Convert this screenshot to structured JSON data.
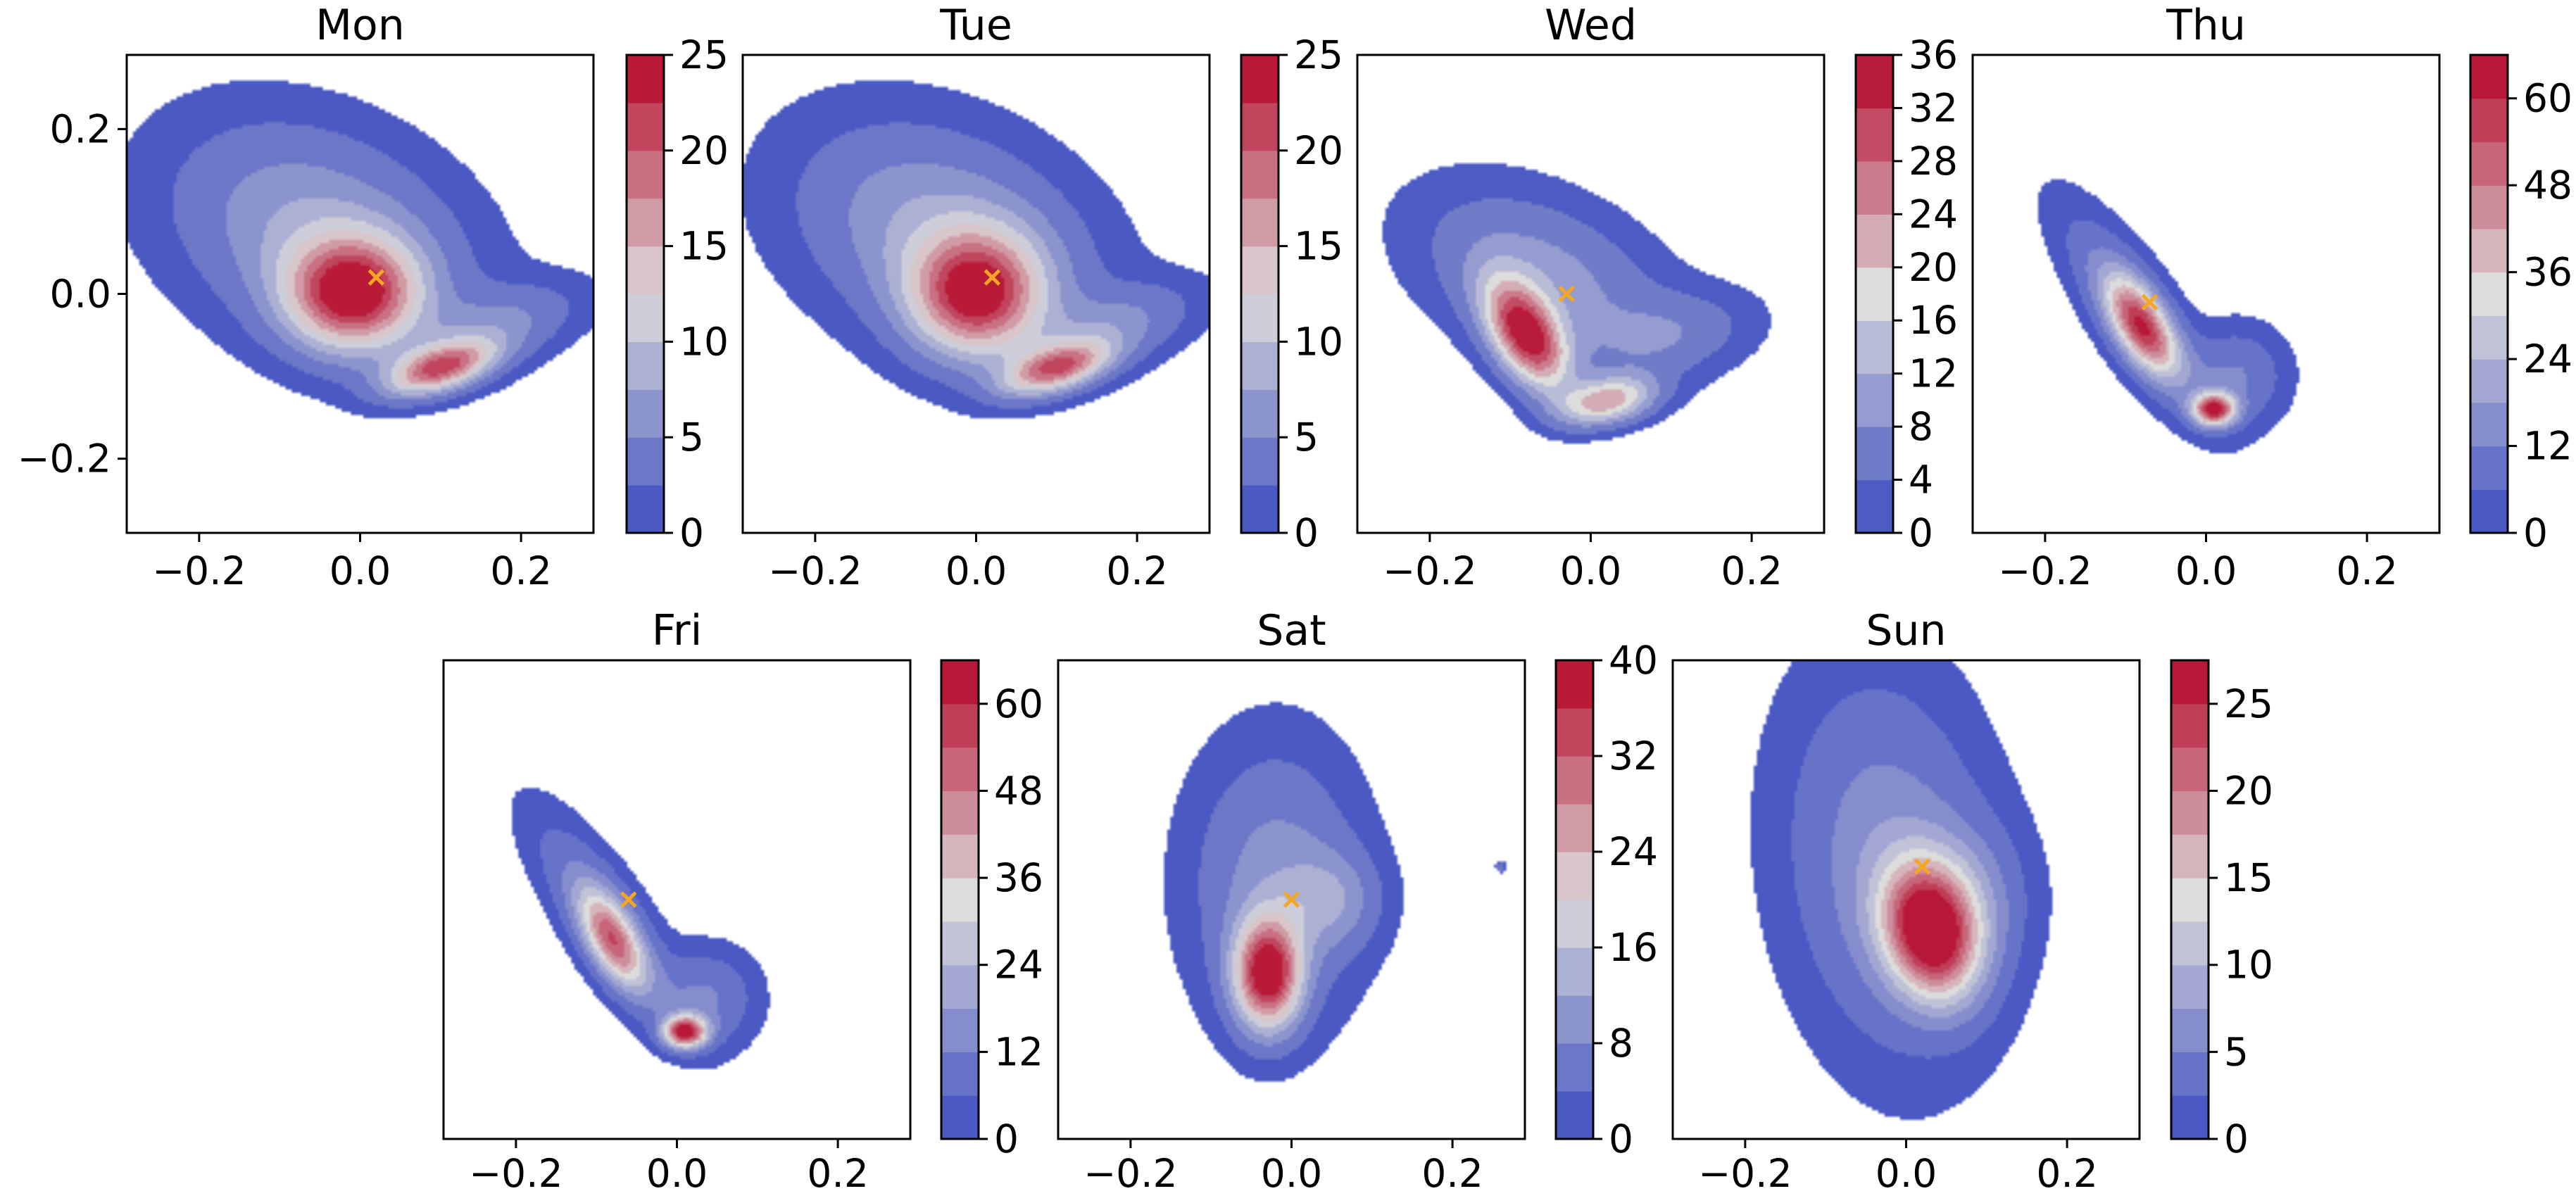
{
  "chart_data": {
    "type": "contour",
    "colormap": "coolwarm",
    "colors": {
      "marker": "#f5a623",
      "low": "#3b4cc0",
      "mid": "#dddcdc",
      "high": "#b40426"
    },
    "panels": [
      {
        "title": "Mon",
        "xlim": [
          -0.29,
          0.29
        ],
        "ylim": [
          -0.29,
          0.29
        ],
        "xticks": [
          -0.2,
          0.0,
          0.2
        ],
        "xtick_labels": [
          "−0.2",
          "0.0",
          "0.2"
        ],
        "yticks": [
          0.2,
          0.0,
          -0.2
        ],
        "ytick_labels": [
          "0.2",
          "0.0",
          "−0.2"
        ],
        "colorbar": {
          "min": 0,
          "max": 25,
          "levels": 10,
          "ticks": [
            0,
            5,
            10,
            15,
            20,
            25
          ],
          "tick_labels": [
            "0",
            "5",
            "10",
            "15",
            "20",
            "25"
          ]
        },
        "marker": [
          0.02,
          0.02
        ],
        "density": {
          "peaks": [
            {
              "x": -0.01,
              "y": 0.0,
              "sx": 0.055,
              "sy": 0.045,
              "amp": 22,
              "rho": 0
            },
            {
              "x": 0.1,
              "y": -0.09,
              "sx": 0.045,
              "sy": 0.022,
              "amp": 19,
              "rho": 0.5
            },
            {
              "x": -0.05,
              "y": 0.07,
              "sx": 0.12,
              "sy": 0.09,
              "amp": 8,
              "rho": -0.3
            },
            {
              "x": 0.17,
              "y": -0.04,
              "sx": 0.07,
              "sy": 0.035,
              "amp": 5,
              "rho": 0.5
            }
          ]
        }
      },
      {
        "title": "Tue",
        "xlim": [
          -0.29,
          0.29
        ],
        "ylim": [
          -0.29,
          0.29
        ],
        "xticks": [
          -0.2,
          0.0,
          0.2
        ],
        "xtick_labels": [
          "−0.2",
          "0.0",
          "0.2"
        ],
        "yticks": [],
        "ytick_labels": [],
        "colorbar": {
          "min": 0,
          "max": 25,
          "levels": 10,
          "ticks": [
            0,
            5,
            10,
            15,
            20,
            25
          ],
          "tick_labels": [
            "0",
            "5",
            "10",
            "15",
            "20",
            "25"
          ]
        },
        "marker": [
          0.02,
          0.02
        ],
        "density": {
          "peaks": [
            {
              "x": 0.0,
              "y": 0.0,
              "sx": 0.055,
              "sy": 0.05,
              "amp": 21,
              "rho": 0
            },
            {
              "x": 0.1,
              "y": -0.09,
              "sx": 0.045,
              "sy": 0.022,
              "amp": 18,
              "rho": 0.5
            },
            {
              "x": -0.04,
              "y": 0.07,
              "sx": 0.12,
              "sy": 0.09,
              "amp": 8,
              "rho": -0.3
            },
            {
              "x": 0.17,
              "y": -0.04,
              "sx": 0.07,
              "sy": 0.035,
              "amp": 5,
              "rho": 0.5
            }
          ]
        }
      },
      {
        "title": "Wed",
        "xlim": [
          -0.29,
          0.29
        ],
        "ylim": [
          -0.29,
          0.29
        ],
        "xticks": [
          -0.2,
          0.0,
          0.2
        ],
        "xtick_labels": [
          "−0.2",
          "0.0",
          "0.2"
        ],
        "yticks": [],
        "ytick_labels": [],
        "colorbar": {
          "min": 0,
          "max": 36,
          "levels": 9,
          "ticks": [
            0,
            4,
            8,
            12,
            16,
            20,
            24,
            28,
            32,
            36
          ],
          "tick_labels": [
            "0",
            "4",
            "8",
            "12",
            "16",
            "20",
            "24",
            "28",
            "32",
            "36"
          ]
        },
        "marker": [
          -0.03,
          0.0
        ],
        "density": {
          "peaks": [
            {
              "x": -0.08,
              "y": -0.05,
              "sx": 0.035,
              "sy": 0.045,
              "amp": 33,
              "rho": -0.5
            },
            {
              "x": 0.02,
              "y": -0.13,
              "sx": 0.04,
              "sy": 0.02,
              "amp": 22,
              "rho": 0.3
            },
            {
              "x": -0.06,
              "y": 0.02,
              "sx": 0.1,
              "sy": 0.07,
              "amp": 10,
              "rho": -0.4
            },
            {
              "x": 0.1,
              "y": -0.05,
              "sx": 0.07,
              "sy": 0.035,
              "amp": 6,
              "rho": 0.3
            }
          ]
        }
      },
      {
        "title": "Thu",
        "xlim": [
          -0.29,
          0.29
        ],
        "ylim": [
          -0.29,
          0.29
        ],
        "xticks": [
          -0.2,
          0.0,
          0.2
        ],
        "xtick_labels": [
          "−0.2",
          "0.0",
          "0.2"
        ],
        "yticks": [],
        "ytick_labels": [],
        "colorbar": {
          "min": 0,
          "max": 66,
          "levels": 11,
          "ticks": [
            0,
            12,
            24,
            36,
            48,
            60
          ],
          "tick_labels": [
            "0",
            "12",
            "24",
            "36",
            "48",
            "60"
          ]
        },
        "marker": [
          -0.07,
          -0.01
        ],
        "density": {
          "peaks": [
            {
              "x": -0.08,
              "y": -0.04,
              "sx": 0.03,
              "sy": 0.04,
              "amp": 48,
              "rho": -0.6
            },
            {
              "x": 0.01,
              "y": -0.14,
              "sx": 0.018,
              "sy": 0.013,
              "amp": 60,
              "rho": 0
            },
            {
              "x": -0.09,
              "y": -0.02,
              "sx": 0.06,
              "sy": 0.08,
              "amp": 15,
              "rho": -0.8
            },
            {
              "x": 0.04,
              "y": -0.1,
              "sx": 0.04,
              "sy": 0.04,
              "amp": 12,
              "rho": 0
            }
          ]
        }
      },
      {
        "title": "Fri",
        "xlim": [
          -0.29,
          0.29
        ],
        "ylim": [
          -0.29,
          0.29
        ],
        "xticks": [
          -0.2,
          0.0,
          0.2
        ],
        "xtick_labels": [
          "−0.2",
          "0.0",
          "0.2"
        ],
        "yticks": [],
        "ytick_labels": [],
        "colorbar": {
          "min": 0,
          "max": 66,
          "levels": 11,
          "ticks": [
            0,
            12,
            24,
            36,
            48,
            60
          ],
          "tick_labels": [
            "0",
            "12",
            "24",
            "36",
            "48",
            "60"
          ]
        },
        "marker": [
          -0.06,
          0.0
        ],
        "density": {
          "peaks": [
            {
              "x": -0.08,
              "y": -0.05,
              "sx": 0.028,
              "sy": 0.04,
              "amp": 42,
              "rho": -0.6
            },
            {
              "x": 0.01,
              "y": -0.16,
              "sx": 0.018,
              "sy": 0.013,
              "amp": 62,
              "rho": 0
            },
            {
              "x": -0.09,
              "y": -0.02,
              "sx": 0.06,
              "sy": 0.08,
              "amp": 14,
              "rho": -0.8
            },
            {
              "x": 0.04,
              "y": -0.12,
              "sx": 0.04,
              "sy": 0.04,
              "amp": 12,
              "rho": 0
            }
          ]
        }
      },
      {
        "title": "Sat",
        "xlim": [
          -0.29,
          0.29
        ],
        "ylim": [
          -0.29,
          0.29
        ],
        "xticks": [
          -0.2,
          0.0,
          0.2
        ],
        "xtick_labels": [
          "−0.2",
          "0.0",
          "0.2"
        ],
        "yticks": [],
        "ytick_labels": [],
        "colorbar": {
          "min": 0,
          "max": 40,
          "levels": 10,
          "ticks": [
            0,
            8,
            16,
            24,
            32,
            40
          ],
          "tick_labels": [
            "0",
            "8",
            "16",
            "24",
            "32",
            "40"
          ]
        },
        "marker": [
          0.0,
          0.0
        ],
        "density": {
          "peaks": [
            {
              "x": -0.03,
              "y": -0.09,
              "sx": 0.028,
              "sy": 0.045,
              "amp": 38,
              "rho": 0
            },
            {
              "x": -0.02,
              "y": 0.02,
              "sx": 0.07,
              "sy": 0.11,
              "amp": 10,
              "rho": 0
            },
            {
              "x": 0.05,
              "y": 0.0,
              "sx": 0.04,
              "sy": 0.04,
              "amp": 8,
              "rho": 0
            },
            {
              "x": 0.26,
              "y": 0.04,
              "sx": 0.004,
              "sy": 0.004,
              "amp": 8,
              "rho": 0
            }
          ]
        }
      },
      {
        "title": "Sun",
        "xlim": [
          -0.29,
          0.29
        ],
        "ylim": [
          -0.29,
          0.29
        ],
        "xticks": [
          -0.2,
          0.0,
          0.2
        ],
        "xtick_labels": [
          "−0.2",
          "0.0",
          "0.2"
        ],
        "yticks": [],
        "ytick_labels": [],
        "colorbar": {
          "min": 0,
          "max": 27.5,
          "levels": 11,
          "ticks": [
            0,
            5,
            10,
            15,
            20,
            25
          ],
          "tick_labels": [
            "0",
            "5",
            "10",
            "15",
            "20",
            "25"
          ]
        },
        "marker": [
          0.02,
          0.04
        ],
        "density": {
          "peaks": [
            {
              "x": 0.03,
              "y": -0.04,
              "sx": 0.04,
              "sy": 0.055,
              "amp": 25,
              "rho": -0.2
            },
            {
              "x": -0.02,
              "y": 0.04,
              "sx": 0.085,
              "sy": 0.15,
              "amp": 7,
              "rho": -0.15
            },
            {
              "x": 0.07,
              "y": 0.0,
              "sx": 0.05,
              "sy": 0.06,
              "amp": 5,
              "rho": 0
            }
          ]
        }
      }
    ]
  }
}
